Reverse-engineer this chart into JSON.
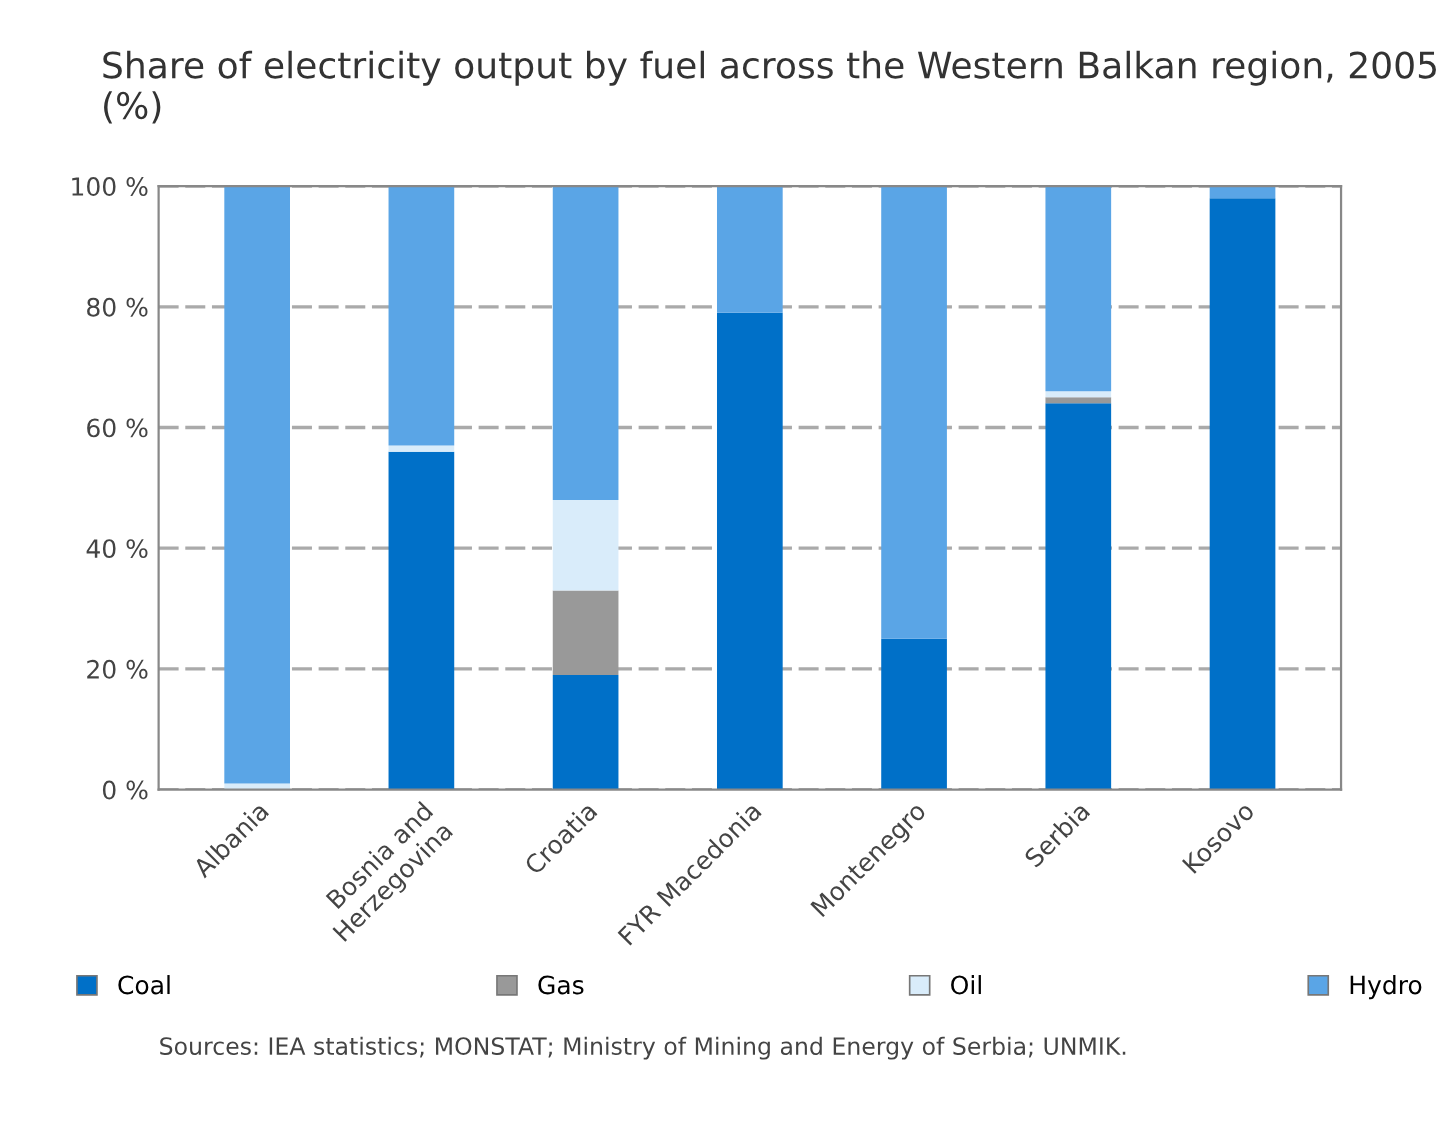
{
  "chart_data": {
    "type": "bar",
    "stacked": true,
    "title": "Share of electricity output by fuel across the Western Balkan region, 2005 (%)",
    "categories": [
      "Albania",
      "Bosnia and\nHerzegovina",
      "Croatia",
      "FYR Macedonia",
      "Montenegro",
      "Serbia",
      "Kosovo"
    ],
    "series": [
      {
        "name": "Coal",
        "color": "#0070c8",
        "values": [
          0,
          56,
          19,
          79,
          25,
          64,
          98
        ]
      },
      {
        "name": "Gas",
        "color": "#999999",
        "values": [
          0,
          0,
          14,
          0,
          0,
          1,
          0
        ]
      },
      {
        "name": "Oil",
        "color": "#d9ecfa",
        "values": [
          1,
          1,
          15,
          0,
          0,
          1,
          0
        ]
      },
      {
        "name": "Hydro",
        "color": "#5aa5e6",
        "values": [
          99,
          43,
          52,
          21,
          75,
          34,
          2
        ]
      }
    ],
    "ylim": [
      0,
      100
    ],
    "yticks": [
      {
        "value": 0,
        "label": "0 %"
      },
      {
        "value": 20,
        "label": "20 %"
      },
      {
        "value": 40,
        "label": "40 %"
      },
      {
        "value": 60,
        "label": "60 %"
      },
      {
        "value": 80,
        "label": "80 %"
      },
      {
        "value": 100,
        "label": "100 %"
      }
    ],
    "grid": "y",
    "legend": "bottom",
    "annotations": [
      "Sources: IEA statistics; MONSTAT; Ministry of Mining and Energy of Serbia; UNMIK."
    ]
  }
}
